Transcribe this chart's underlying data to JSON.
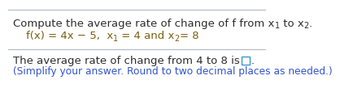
{
  "bg_color": "#ffffff",
  "top_line_color": "#b0b8c8",
  "mid_line_color": "#b0b8c8",
  "main_text_color": "#2d2d2d",
  "line2_color": "#7a6010",
  "blue_text_color": "#3355cc",
  "box_border_color": "#3399cc",
  "line1_part1": "Compute the average rate of change of f from x",
  "line1_sub1": "1",
  "line1_part2": " to x",
  "line1_sub2": "2",
  "line1_end": ".",
  "line2_part1": "f(x) = 4x − 5,  x",
  "line2_sub1": "1",
  "line2_part2": " = 4 and x",
  "line2_sub2": "2",
  "line2_end": "= 8",
  "line3_text": "The average rate of change from 4 to 8 is",
  "line3_end": ".",
  "line4_text": "(Simplify your answer. Round to two decimal places as needed.)",
  "fontsize_main": 9.5,
  "fontsize_line2": 9.5,
  "fontsize_sub": 7.0,
  "fontsize_blue": 8.8
}
